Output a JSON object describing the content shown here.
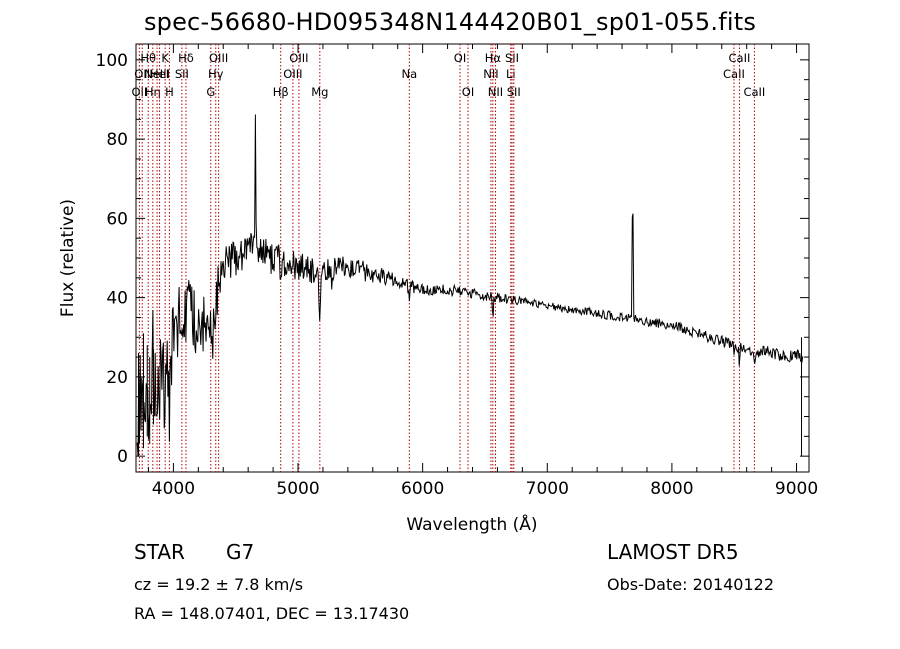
{
  "title": "spec-56680-HD095348N144420B01_sp01-055.fits",
  "info": {
    "object_class": "STAR",
    "subclass": "G7",
    "survey": "LAMOST  DR5",
    "cz": "cz = 19.2 ± 7.8 km/s",
    "obs_date": "Obs-Date: 20140122",
    "radec": "RA = 148.07401, DEC =  13.17430"
  },
  "colors": {
    "spectrum": "#000000",
    "line_markers": "#b00000",
    "axes": "#000000"
  },
  "chart_data": {
    "type": "line",
    "xlabel": "Wavelength (Å)",
    "ylabel": "Flux (relative)",
    "xlim": [
      3700,
      9100
    ],
    "ylim": [
      -4,
      104
    ],
    "xticks": [
      4000,
      5000,
      6000,
      7000,
      8000,
      9000
    ],
    "yticks": [
      0,
      20,
      40,
      60,
      80,
      100
    ],
    "grid": false,
    "series": [
      {
        "continuum_x": [
          3700,
          3750,
          3800,
          3850,
          3900,
          3950,
          4000,
          4050,
          4100,
          4150,
          4200,
          4250,
          4300,
          4350,
          4400,
          4450,
          4500,
          4550,
          4600,
          4700,
          4800,
          4900,
          5000,
          5100,
          5200,
          5400,
          5600,
          5800,
          6000,
          6200,
          6400,
          6600,
          6800,
          7000,
          7200,
          7400,
          7600,
          7800,
          8000,
          8200,
          8400,
          8600,
          8800,
          9000,
          9050
        ],
        "continuum_y": [
          13,
          18,
          22,
          22,
          17,
          21,
          30,
          35,
          38,
          35,
          32,
          33,
          32,
          41,
          46,
          49,
          50,
          51,
          52,
          51,
          50,
          49,
          48,
          47,
          47,
          48,
          46,
          44,
          42,
          42,
          41,
          40,
          39,
          38,
          37,
          36,
          35,
          34,
          33,
          31,
          29,
          27,
          26,
          25,
          25
        ],
        "noise_x": [
          3700,
          3900,
          4000,
          4300,
          4500,
          5000,
          5600,
          6000,
          7000,
          8000,
          9050
        ],
        "noise_y": [
          18,
          14,
          9,
          7,
          5,
          3.6,
          2.4,
          1.5,
          1.0,
          1.2,
          1.8
        ],
        "features": [
          {
            "x": 3934,
            "depth": 12,
            "width": 5
          },
          {
            "x": 3968,
            "depth": 10,
            "width": 5
          },
          {
            "x": 4101,
            "depth": 4,
            "width": 5
          },
          {
            "x": 4308,
            "depth": 10,
            "width": 6
          },
          {
            "x": 4340,
            "depth": 4,
            "width": 5
          },
          {
            "x": 4861,
            "depth": 6,
            "width": 5
          },
          {
            "x": 5175,
            "depth": 12,
            "width": 6
          },
          {
            "x": 5270,
            "depth": 3,
            "width": 5
          },
          {
            "x": 5893,
            "depth": 5,
            "width": 5
          },
          {
            "x": 6563,
            "depth": 6,
            "width": 4
          },
          {
            "x": 8498,
            "depth": 3,
            "width": 4
          },
          {
            "x": 8542,
            "depth": 5,
            "width": 4
          },
          {
            "x": 8662,
            "depth": 4,
            "width": 4
          },
          {
            "x": 4658,
            "depth": -34,
            "width": 3
          },
          {
            "x": 7685,
            "depth": -44,
            "width": 3
          }
        ],
        "edge_x": [
          3720,
          3760,
          3790,
          3810,
          3840,
          9040
        ],
        "edge_y_low": [
          0,
          2,
          5,
          3,
          8,
          0
        ],
        "edge_y_high": [
          26,
          31,
          28,
          25,
          27,
          30
        ],
        "seed": 56680
      }
    ],
    "line_markers": [
      {
        "x": 3727,
        "label": "OII",
        "row": 2
      },
      {
        "x": 3750,
        "label": "OII",
        "row": 1
      },
      {
        "x": 3798,
        "label": "Hθ",
        "row": 0
      },
      {
        "x": 3835,
        "label": "Hη",
        "row": 2
      },
      {
        "x": 3869,
        "label": "NeIII",
        "row": 1
      },
      {
        "x": 3889,
        "label": "HeI",
        "row": 1
      },
      {
        "x": 3934,
        "label": "K",
        "row": 0
      },
      {
        "x": 3968,
        "label": "H",
        "row": 2
      },
      {
        "x": 4068,
        "label": "SII",
        "row": 1
      },
      {
        "x": 4101,
        "label": "Hδ",
        "row": 0
      },
      {
        "x": 4300,
        "label": "G",
        "row": 2
      },
      {
        "x": 4340,
        "label": "Hγ",
        "row": 1
      },
      {
        "x": 4363,
        "label": "OIII",
        "row": 0
      },
      {
        "x": 4861,
        "label": "Hβ",
        "row": 2
      },
      {
        "x": 4959,
        "label": "OIII",
        "row": 1
      },
      {
        "x": 5007,
        "label": "OIII",
        "row": 0
      },
      {
        "x": 5175,
        "label": "Mg",
        "row": 2
      },
      {
        "x": 5893,
        "label": "Na",
        "row": 1
      },
      {
        "x": 6300,
        "label": "OI",
        "row": 0
      },
      {
        "x": 6364,
        "label": "OI",
        "row": 2
      },
      {
        "x": 6548,
        "label": "NII",
        "row": 1
      },
      {
        "x": 6563,
        "label": "Hα",
        "row": 0
      },
      {
        "x": 6584,
        "label": "NII",
        "row": 2
      },
      {
        "x": 6707,
        "label": "Li",
        "row": 1
      },
      {
        "x": 6717,
        "label": "SII",
        "row": 0
      },
      {
        "x": 6731,
        "label": "SII",
        "row": 2
      },
      {
        "x": 8498,
        "label": "CaII",
        "row": 1
      },
      {
        "x": 8542,
        "label": "CaII",
        "row": 0
      },
      {
        "x": 8662,
        "label": "CaII",
        "row": 2
      }
    ]
  }
}
